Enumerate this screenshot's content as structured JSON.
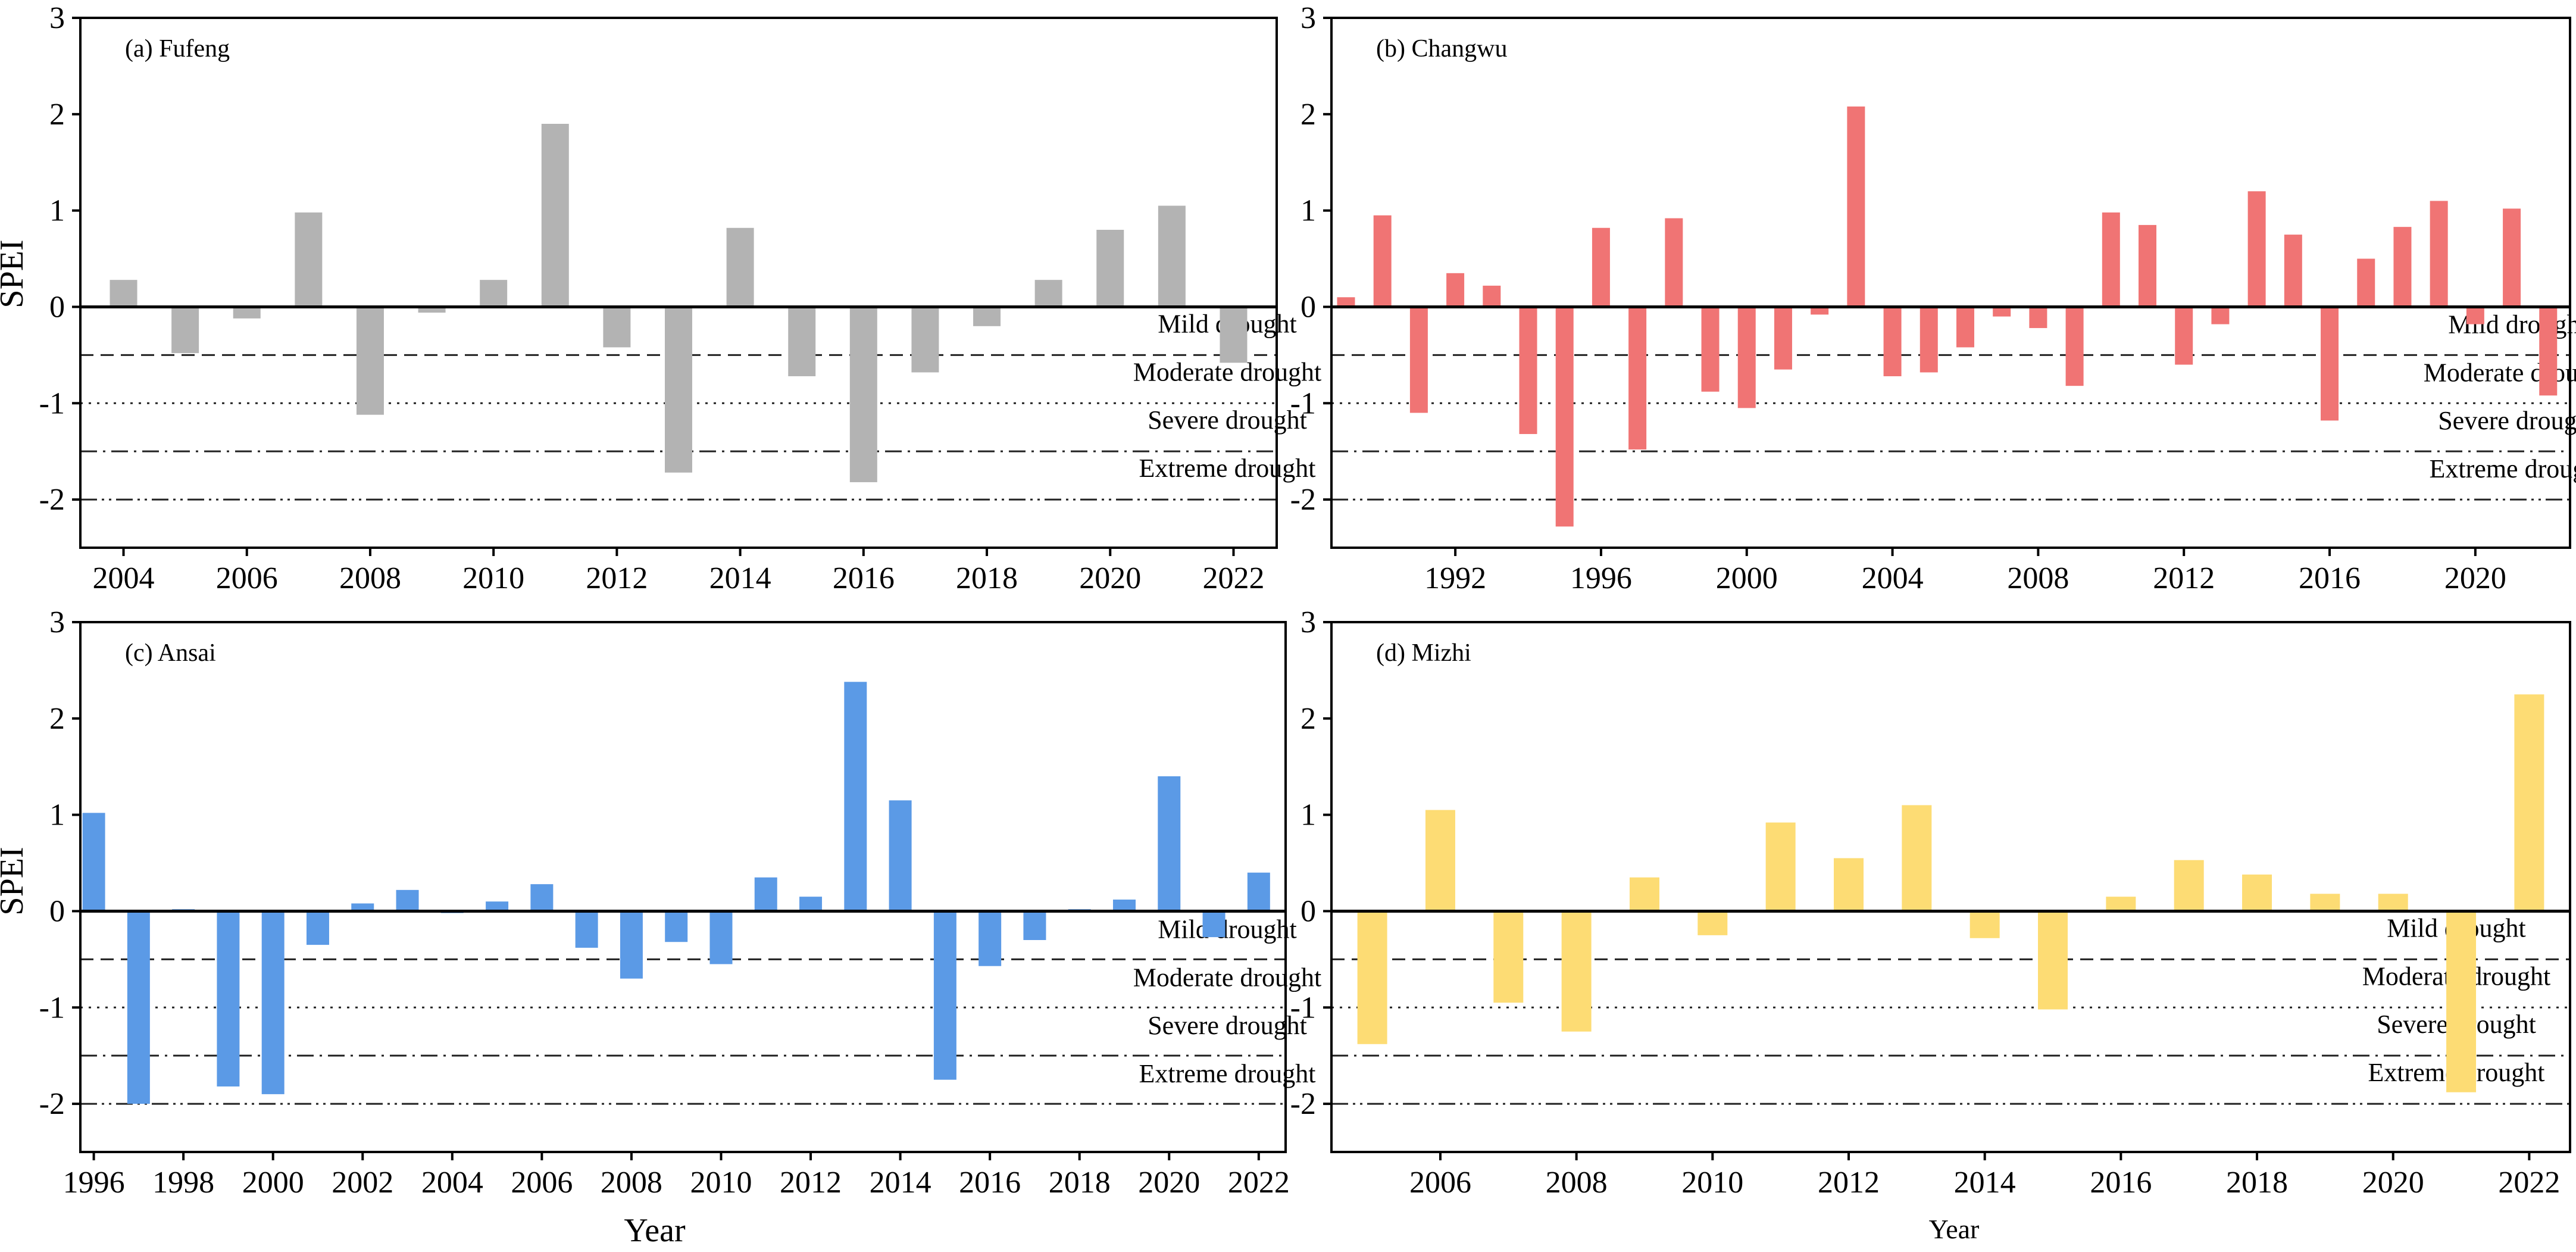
{
  "figure": {
    "ylabel": "SPEI",
    "xlabel": "Year",
    "colors": {
      "fufeng": "#b3b3b3",
      "changwu": "#f07474",
      "ansai": "#5b9ae6",
      "mizhi": "#fddc74"
    },
    "thresholds": [
      {
        "name": "Mild drought",
        "value": -0.5,
        "style": "dashed"
      },
      {
        "name": "Moderate drought",
        "value": -1.0,
        "style": "dotted"
      },
      {
        "name": "Severe drought",
        "value": -1.5,
        "style": "dashdot"
      },
      {
        "name": "Extreme drought",
        "value": -2.0,
        "style": "dashdotdot"
      }
    ]
  },
  "chart_data": [
    {
      "type": "bar",
      "id": "fufeng",
      "title": "(a) Fufeng",
      "xlabel": "",
      "ylabel": "SPEI",
      "ylim": [
        -2.5,
        3
      ],
      "yticks": [
        -2,
        -1,
        0,
        1,
        2,
        3
      ],
      "xlim": [
        2003.3,
        2022.7
      ],
      "xticks": [
        2004,
        2006,
        2008,
        2010,
        2012,
        2014,
        2016,
        2018,
        2020,
        2022
      ],
      "x": [
        2004,
        2005,
        2006,
        2007,
        2008,
        2009,
        2010,
        2011,
        2012,
        2013,
        2014,
        2015,
        2016,
        2017,
        2018,
        2019,
        2020,
        2021,
        2022
      ],
      "values": [
        0.28,
        -0.48,
        -0.12,
        0.98,
        -1.12,
        -0.06,
        0.28,
        1.9,
        -0.42,
        -1.72,
        0.82,
        -0.72,
        -1.82,
        -0.68,
        -0.2,
        0.28,
        0.8,
        1.05,
        -0.58
      ],
      "color": "#b3b3b3"
    },
    {
      "type": "bar",
      "id": "changwu",
      "title": "(b) Changwu",
      "xlabel": "",
      "ylabel": "",
      "ylim": [
        -2.5,
        3
      ],
      "yticks": [
        -2,
        -1,
        0,
        1,
        2,
        3
      ],
      "xlim": [
        1988.6,
        2022.6
      ],
      "xticks": [
        1992,
        1996,
        2000,
        2004,
        2008,
        2012,
        2016,
        2020
      ],
      "x": [
        1989,
        1990,
        1991,
        1992,
        1993,
        1994,
        1995,
        1996,
        1997,
        1998,
        1999,
        2000,
        2001,
        2002,
        2003,
        2004,
        2005,
        2006,
        2007,
        2008,
        2009,
        2010,
        2011,
        2012,
        2013,
        2014,
        2015,
        2016,
        2017,
        2018,
        2019,
        2020,
        2021,
        2022
      ],
      "values": [
        0.1,
        0.95,
        -1.1,
        0.35,
        0.22,
        -1.32,
        -2.28,
        0.82,
        -1.48,
        0.92,
        -0.88,
        -1.05,
        -0.65,
        -0.08,
        2.08,
        -0.72,
        -0.68,
        -0.42,
        -0.1,
        -0.22,
        -0.82,
        0.98,
        0.85,
        -0.6,
        -0.18,
        1.2,
        0.75,
        -1.18,
        0.5,
        0.83,
        1.1,
        -0.18,
        1.02,
        -0.92
      ],
      "color": "#f07474"
    },
    {
      "type": "bar",
      "id": "ansai",
      "title": "(c) Ansai",
      "xlabel": "Year",
      "ylabel": "SPEI",
      "ylim": [
        -2.5,
        3
      ],
      "yticks": [
        -2,
        -1,
        0,
        1,
        2,
        3
      ],
      "xlim": [
        1995.7,
        2022.6
      ],
      "xticks": [
        1996,
        1998,
        2000,
        2002,
        2004,
        2006,
        2008,
        2010,
        2012,
        2014,
        2016,
        2018,
        2020,
        2022
      ],
      "x": [
        1996,
        1997,
        1998,
        1999,
        2000,
        2001,
        2002,
        2003,
        2004,
        2005,
        2006,
        2007,
        2008,
        2009,
        2010,
        2011,
        2012,
        2013,
        2014,
        2015,
        2016,
        2017,
        2018,
        2019,
        2020,
        2021,
        2022
      ],
      "values": [
        1.02,
        -2.0,
        0.02,
        -1.82,
        -1.9,
        -0.35,
        0.08,
        0.22,
        -0.02,
        0.1,
        0.28,
        -0.38,
        -0.7,
        -0.32,
        -0.55,
        0.35,
        0.15,
        2.38,
        1.15,
        -1.75,
        -0.57,
        -0.3,
        0.02,
        0.12,
        1.4,
        -0.27,
        0.4
      ],
      "color": "#5b9ae6"
    },
    {
      "type": "bar",
      "id": "mizhi",
      "title": "(d) Mizhi",
      "xlabel": "Year",
      "ylabel": "",
      "ylim": [
        -2.5,
        3
      ],
      "yticks": [
        -2,
        -1,
        0,
        1,
        2,
        3
      ],
      "xlim": [
        2004.4,
        2022.6
      ],
      "xticks": [
        2006,
        2008,
        2010,
        2012,
        2014,
        2016,
        2018,
        2020,
        2022
      ],
      "x": [
        2005,
        2006,
        2007,
        2008,
        2009,
        2010,
        2011,
        2012,
        2013,
        2014,
        2015,
        2016,
        2017,
        2018,
        2019,
        2020,
        2021,
        2022
      ],
      "values": [
        -1.38,
        1.05,
        -0.95,
        -1.25,
        0.35,
        -0.25,
        0.92,
        0.55,
        1.1,
        -0.28,
        -1.02,
        0.15,
        0.53,
        0.38,
        0.18,
        0.18,
        -1.88,
        2.25
      ],
      "color": "#fddc74"
    }
  ]
}
